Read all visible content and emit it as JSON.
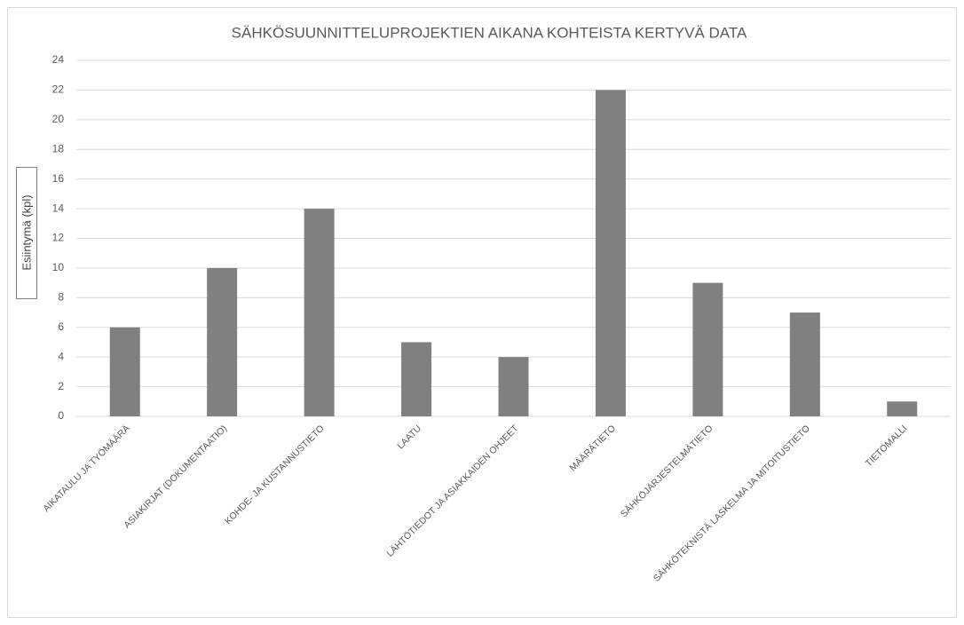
{
  "chart_data": {
    "type": "bar",
    "title": "SÄHKÖSUUNNITTELUPROJEKTIEN AIKANA KOHTEISTA KERTYVÄ DATA",
    "y_label": "Esiintymä (kpl)",
    "categories": [
      "AIKATAULU JA TYÖMÄÄRÄ",
      "ASIAKIRJAT (DOKUMENTAATIO)",
      "KOHDE- JA KUSTANNUSTIETO",
      "LAATU",
      "LÄHTÖTIEDOT JA ASIAKKAIDEN OHJEET",
      "MÄÄRÄTIETO",
      "SÄHKÖJÄRJESTELMÄTIETO",
      "SÄHKÖTEKNISTÄ LASKELMA JA MITOITUSTIETO",
      "TIETOMALLI"
    ],
    "values": [
      6,
      10,
      14,
      5,
      4,
      22,
      9,
      7,
      1
    ],
    "color": "#808080",
    "ylim": [
      0,
      24
    ],
    "yticks": [
      0,
      2,
      4,
      6,
      8,
      10,
      12,
      14,
      16,
      18,
      20,
      22,
      24
    ],
    "grid": true
  }
}
